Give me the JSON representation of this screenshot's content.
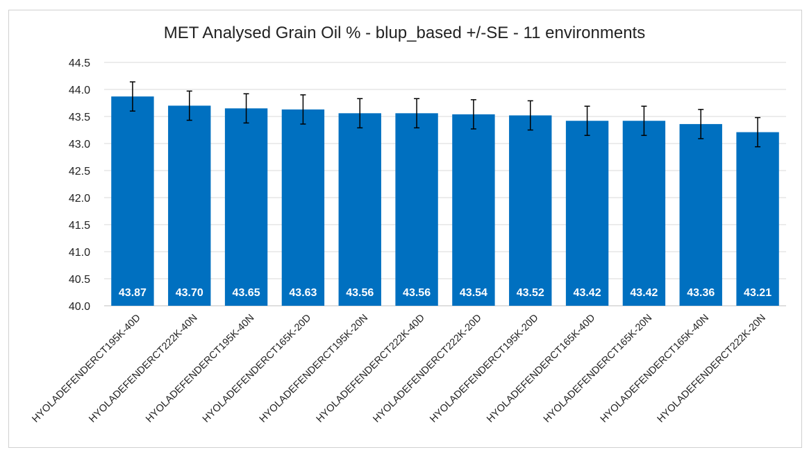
{
  "chart_data": {
    "type": "bar",
    "title": "MET Analysed Grain Oil % - blup_based +/-SE - 11 environments",
    "xlabel": "",
    "ylabel": "",
    "ylim": [
      40.0,
      44.5
    ],
    "yticks": [
      "40.0",
      "40.5",
      "41.0",
      "41.5",
      "42.0",
      "42.5",
      "43.0",
      "43.5",
      "44.0",
      "44.5"
    ],
    "grid": true,
    "legend": "none",
    "bar_color": "#0070C0",
    "error_bars": "+/-SE",
    "categories": [
      "HYOLADEFENDERCT195K-40D",
      "HYOLADEFENDERCT222K-40N",
      "HYOLADEFENDERCT195K-40N",
      "HYOLADEFENDERCT165K-20D",
      "HYOLADEFENDERCT195K-20N",
      "HYOLADEFENDERCT222K-40D",
      "HYOLADEFENDERCT222K-20D",
      "HYOLADEFENDERCT195K-20D",
      "HYOLADEFENDERCT165K-40D",
      "HYOLADEFENDERCT165K-20N",
      "HYOLADEFENDERCT165K-40N",
      "HYOLADEFENDERCT222K-20N"
    ],
    "values": [
      43.87,
      43.7,
      43.65,
      43.63,
      43.56,
      43.56,
      43.54,
      43.52,
      43.42,
      43.42,
      43.36,
      43.21
    ],
    "value_labels": [
      "43.87",
      "43.70",
      "43.65",
      "43.63",
      "43.56",
      "43.56",
      "43.54",
      "43.52",
      "43.42",
      "43.42",
      "43.36",
      "43.21"
    ],
    "se": [
      0.27,
      0.27,
      0.27,
      0.27,
      0.27,
      0.27,
      0.27,
      0.27,
      0.27,
      0.27,
      0.27,
      0.27
    ]
  }
}
